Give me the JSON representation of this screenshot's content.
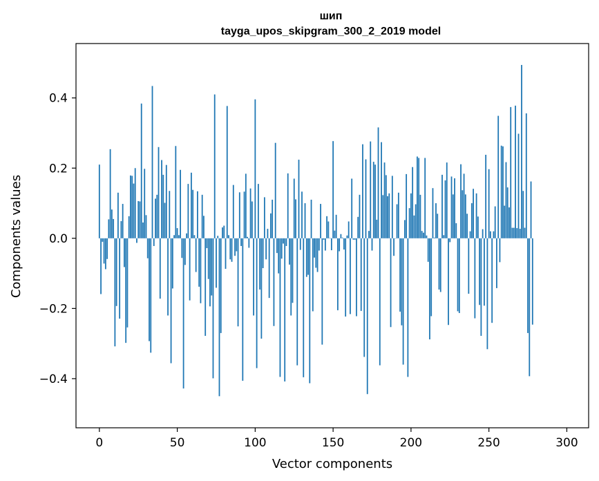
{
  "chart_data": {
    "type": "bar",
    "title_line1": "шип",
    "title_line2": "tayga_upos_skipgram_300_2_2019 model",
    "xlabel": "Vector components",
    "ylabel": "Components values",
    "xlim": [
      -15,
      314
    ],
    "ylim": [
      -0.54,
      0.555
    ],
    "xticks": [
      0,
      50,
      100,
      150,
      200,
      250,
      300
    ],
    "xtick_labels": [
      "0",
      "50",
      "100",
      "150",
      "200",
      "250",
      "300"
    ],
    "yticks": [
      -0.4,
      -0.2,
      0.0,
      0.2,
      0.4
    ],
    "ytick_labels": [
      "−0.4",
      "−0.2",
      "0.0",
      "0.2",
      "0.4"
    ],
    "bar_color": "#1f77b4",
    "values": [
      0.21,
      -0.159,
      -0.01,
      -0.072,
      -0.088,
      -0.059,
      0.054,
      0.254,
      0.082,
      0.055,
      -0.308,
      -0.193,
      0.13,
      -0.229,
      0.049,
      0.098,
      -0.082,
      -0.298,
      -0.254,
      0.063,
      0.179,
      0.178,
      0.156,
      0.2,
      -0.013,
      0.106,
      0.105,
      0.384,
      0.045,
      0.198,
      0.066,
      -0.057,
      -0.293,
      -0.326,
      0.434,
      -0.022,
      0.113,
      0.124,
      0.26,
      -0.172,
      0.223,
      0.181,
      0.101,
      0.209,
      -0.22,
      0.135,
      -0.356,
      -0.143,
      0.009,
      0.263,
      0.029,
      0.009,
      0.195,
      -0.056,
      -0.428,
      -0.076,
      0.014,
      0.155,
      -0.177,
      0.187,
      0.138,
      0.009,
      -0.096,
      0.134,
      -0.138,
      -0.185,
      0.124,
      0.064,
      -0.278,
      -0.028,
      -0.116,
      -0.194,
      -0.163,
      -0.399,
      0.41,
      -0.141,
      0.007,
      -0.45,
      -0.27,
      0.031,
      0.036,
      -0.087,
      0.377,
      0.009,
      -0.06,
      -0.067,
      0.152,
      -0.05,
      -0.037,
      -0.251,
      0.131,
      -0.022,
      -0.406,
      0.133,
      0.184,
      0.004,
      -0.027,
      0.142,
      0.105,
      -0.22,
      0.396,
      -0.37,
      0.155,
      -0.146,
      -0.286,
      -0.085,
      0.117,
      -0.06,
      0.027,
      -0.17,
      0.071,
      0.11,
      -0.25,
      0.272,
      -0.042,
      -0.1,
      -0.395,
      -0.058,
      -0.015,
      -0.408,
      -0.022,
      0.185,
      -0.075,
      -0.22,
      -0.184,
      0.17,
      0.111,
      -0.362,
      0.224,
      -0.033,
      0.133,
      -0.396,
      0.1,
      -0.11,
      -0.104,
      -0.413,
      0.11,
      -0.208,
      -0.055,
      -0.084,
      -0.096,
      -0.035,
      0.098,
      -0.303,
      -0.004,
      -0.035,
      0.063,
      0.048,
      0.001,
      -0.034,
      0.277,
      0.022,
      0.067,
      -0.205,
      -0.037,
      0.012,
      0.002,
      -0.032,
      -0.223,
      0.008,
      0.048,
      -0.216,
      0.17,
      -0.004,
      -0.004,
      -0.222,
      0.061,
      0.124,
      -0.207,
      0.268,
      -0.338,
      0.225,
      -0.444,
      0.021,
      0.276,
      -0.035,
      0.218,
      0.21,
      0.053,
      0.316,
      -0.362,
      0.274,
      0.123,
      0.216,
      0.18,
      0.12,
      0.128,
      -0.253,
      0.178,
      -0.05,
      -0.001,
      0.097,
      0.13,
      -0.209,
      -0.248,
      -0.36,
      0.052,
      0.183,
      -0.395,
      0.086,
      0.128,
      0.203,
      0.065,
      0.097,
      0.233,
      0.229,
      0.124,
      0.021,
      0.016,
      0.229,
      0.008,
      -0.067,
      -0.288,
      -0.222,
      0.143,
      0.002,
      0.1,
      0.07,
      -0.146,
      -0.153,
      0.181,
      0.009,
      0.165,
      0.216,
      -0.247,
      -0.011,
      0.176,
      0.125,
      0.171,
      0.043,
      -0.208,
      -0.213,
      0.211,
      0.137,
      0.184,
      0.125,
      0.07,
      -0.158,
      0.02,
      0.1,
      0.141,
      -0.228,
      0.128,
      0.062,
      -0.19,
      -0.278,
      0.026,
      -0.192,
      0.238,
      -0.316,
      0.197,
      0.02,
      -0.241,
      0.02,
      0.091,
      -0.142,
      0.349,
      -0.068,
      0.264,
      0.262,
      0.093,
      0.217,
      0.145,
      0.088,
      0.374,
      0.03,
      0.03,
      0.378,
      0.029,
      0.298,
      0.027,
      0.494,
      0.135,
      0.03,
      0.356,
      -0.27,
      -0.393,
      0.162,
      -0.246
    ]
  }
}
